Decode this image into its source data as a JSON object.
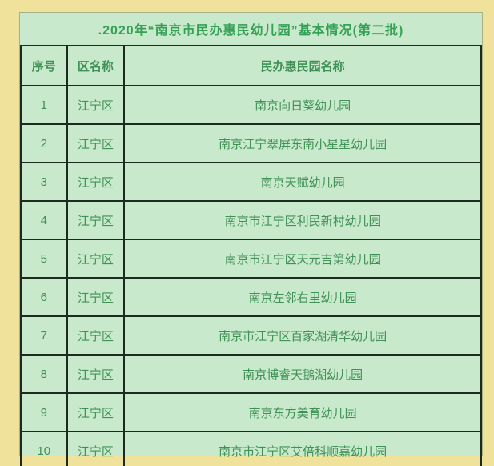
{
  "title": ".2020年“南京市民办惠民幼儿园”基本情况(第二批)",
  "table": {
    "headers": [
      "序号",
      "区名称",
      "民办惠民园名称"
    ],
    "rows": [
      {
        "no": "1",
        "district": "江宁区",
        "name": "南京向日葵幼儿园"
      },
      {
        "no": "2",
        "district": "江宁区",
        "name": "南京江宁翠屏东南小星星幼儿园"
      },
      {
        "no": "3",
        "district": "江宁区",
        "name": "南京天赋幼儿园"
      },
      {
        "no": "4",
        "district": "江宁区",
        "name": "南京市江宁区利民新村幼儿园"
      },
      {
        "no": "5",
        "district": "江宁区",
        "name": "南京市江宁区天元吉第幼儿园"
      },
      {
        "no": "6",
        "district": "江宁区",
        "name": "南京左邻右里幼儿园"
      },
      {
        "no": "7",
        "district": "江宁区",
        "name": "南京市江宁区百家湖清华幼儿园"
      },
      {
        "no": "8",
        "district": "江宁区",
        "name": "南京博睿天鹅湖幼儿园"
      },
      {
        "no": "9",
        "district": "江宁区",
        "name": "南京东方美育幼儿园"
      },
      {
        "no": "10",
        "district": "江宁区",
        "name": "南京市江宁区艾倍科顺嘉幼儿园"
      }
    ]
  },
  "colors": {
    "frame_gold": "#f1e29b",
    "frame_highlight": "#faf4d2",
    "frame_shadow": "#e9d287",
    "table_background": "#c8e9cc",
    "cell_border": "#1d2b1e",
    "text_green": "#3f9155",
    "title_green": "#35a155"
  }
}
